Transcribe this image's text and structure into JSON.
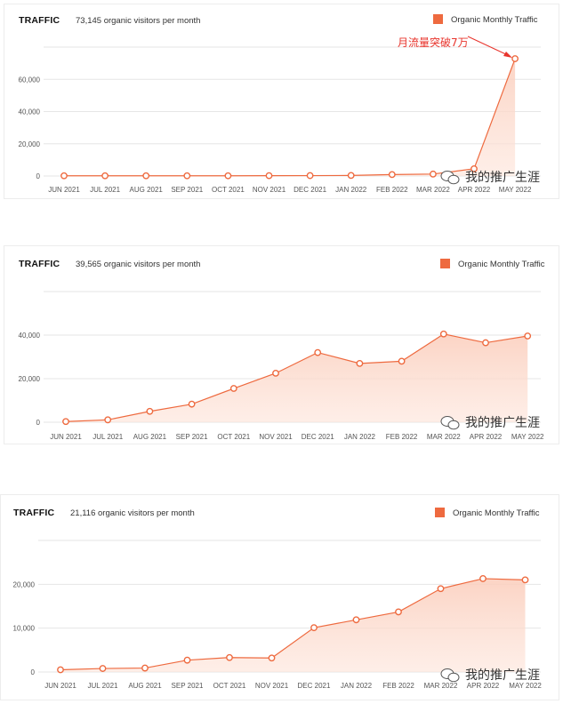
{
  "colors": {
    "accent": "#ee6a3f",
    "fill": "#fde3d8",
    "annotation": "#e8342c",
    "grid": "#e6e6e6"
  },
  "watermark": "我的推广生涯",
  "chart_data": [
    {
      "type": "area",
      "title": "TRAFFIC",
      "subtitle": "73,145 organic visitors per month",
      "legend": "Organic Monthly Traffic",
      "legend_position": "top-right",
      "grid": true,
      "categories": [
        "JUN 2021",
        "JUL 2021",
        "AUG 2021",
        "SEP 2021",
        "OCT 2021",
        "NOV 2021",
        "DEC 2021",
        "JAN 2022",
        "FEB 2022",
        "MAR 2022",
        "APR 2022",
        "MAY 2022"
      ],
      "values": [
        150,
        150,
        150,
        150,
        150,
        200,
        250,
        350,
        900,
        1200,
        4500,
        72800
      ],
      "yticks": [
        0,
        20000,
        40000,
        60000
      ],
      "ytick_labels": [
        "0",
        "20,000",
        "40,000",
        "60,000"
      ],
      "ylim": [
        0,
        80000
      ],
      "annotation": {
        "text": "月流量突破7万",
        "index": 11
      }
    },
    {
      "type": "area",
      "title": "TRAFFIC",
      "subtitle": "39,565 organic visitors per month",
      "legend": "Organic Monthly Traffic",
      "legend_position": "top-right",
      "grid": true,
      "categories": [
        "JUN 2021",
        "JUL 2021",
        "AUG 2021",
        "SEP 2021",
        "OCT 2021",
        "NOV 2021",
        "DEC 2021",
        "JAN 2022",
        "FEB 2022",
        "MAR 2022",
        "APR 2022",
        "MAY 2022"
      ],
      "values": [
        300,
        1100,
        5000,
        8300,
        15500,
        22500,
        32000,
        27000,
        28000,
        40500,
        36500,
        39600
      ],
      "yticks": [
        0,
        20000,
        40000
      ],
      "ytick_labels": [
        "0",
        "20,000",
        "40,000"
      ],
      "ylim": [
        0,
        60000
      ]
    },
    {
      "type": "area",
      "title": "TRAFFIC",
      "subtitle": "21,116 organic visitors per month",
      "legend": "Organic Monthly Traffic",
      "legend_position": "top-right",
      "grid": true,
      "categories": [
        "JUN 2021",
        "JUL 2021",
        "AUG 2021",
        "SEP 2021",
        "OCT 2021",
        "NOV 2021",
        "DEC 2021",
        "JAN 2022",
        "FEB 2022",
        "MAR 2022",
        "APR 2022",
        "MAY 2022"
      ],
      "values": [
        500,
        800,
        900,
        2700,
        3300,
        3200,
        10100,
        11900,
        13700,
        19000,
        21300,
        21000
      ],
      "yticks": [
        0,
        10000,
        20000
      ],
      "ytick_labels": [
        "0",
        "10,000",
        "20,000"
      ],
      "ylim": [
        0,
        30000
      ]
    }
  ]
}
